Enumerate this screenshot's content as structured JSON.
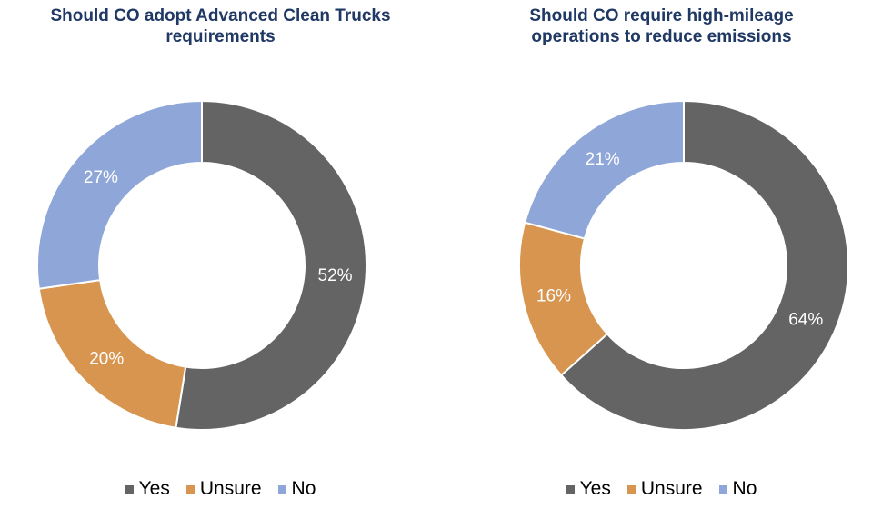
{
  "chart_data": [
    {
      "type": "pie",
      "donut": true,
      "title": "Should CO adopt Advanced Clean Trucks requirements",
      "title_lines": [
        "Should CO adopt Advanced Clean Trucks",
        "requirements"
      ],
      "categories": [
        "Yes",
        "Unsure",
        "No"
      ],
      "values": [
        52,
        20,
        27
      ],
      "labels": [
        "52%",
        "20%",
        "27%"
      ],
      "unit": "%",
      "colors": [
        "#646464",
        "#d8954f",
        "#8fa6d8"
      ],
      "legend": "bottom"
    },
    {
      "type": "pie",
      "donut": true,
      "title": "Should CO require high-mileage operations to reduce emissions",
      "title_lines": [
        "Should CO require high-mileage",
        "operations to reduce emissions"
      ],
      "categories": [
        "Yes",
        "Unsure",
        "No"
      ],
      "values": [
        64,
        16,
        21
      ],
      "labels": [
        "64%",
        "16%",
        "21%"
      ],
      "unit": "%",
      "colors": [
        "#646464",
        "#d8954f",
        "#8fa6d8"
      ],
      "legend": "bottom"
    }
  ]
}
